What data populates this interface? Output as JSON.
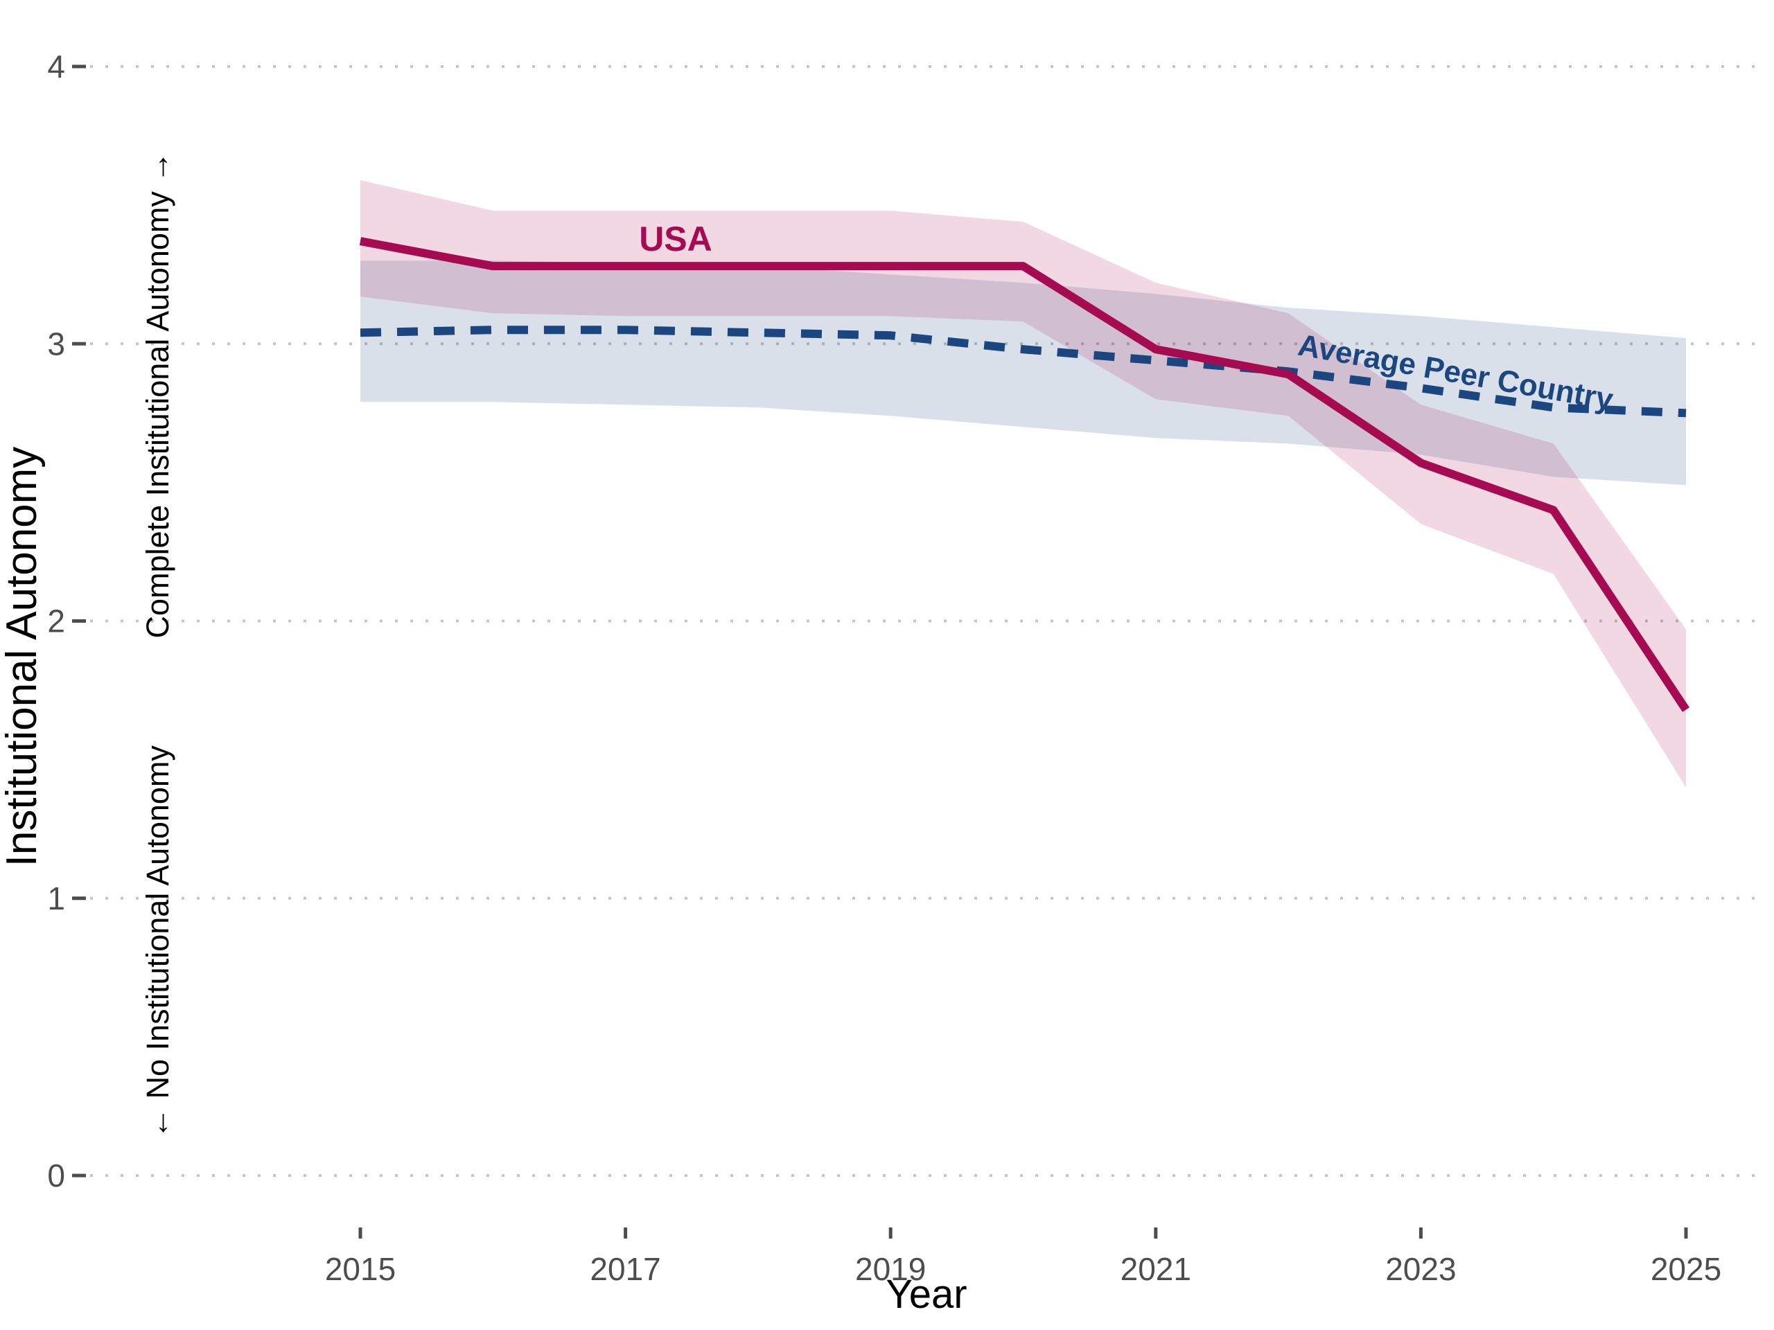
{
  "page": {
    "background": "#FFFFFF"
  },
  "chart_data": {
    "type": "line",
    "title": "",
    "xlabel": "Year",
    "ylabel": "Institutional Autonomy",
    "x": [
      2015,
      2016,
      2017,
      2018,
      2019,
      2020,
      2021,
      2022,
      2023,
      2024,
      2025
    ],
    "xticks": [
      2015,
      2017,
      2019,
      2021,
      2023,
      2025
    ],
    "yticks": [
      0,
      1,
      2,
      3,
      4
    ],
    "ylim": [
      0,
      4
    ],
    "xlim": [
      2013,
      2025.6
    ],
    "grid": "horizontal-dotted",
    "gridline_color": "#C5C5C5",
    "tick_color": "#4D4D4D",
    "legend": "inline-labels",
    "series": [
      {
        "name": "USA",
        "style": "solid",
        "color": "#A60A50",
        "band_fill": "rgba(166,10,80,0.16)",
        "values": [
          3.37,
          3.28,
          3.28,
          3.28,
          3.28,
          3.28,
          2.98,
          2.89,
          2.57,
          2.4,
          1.68
        ],
        "ci_lower": [
          3.17,
          3.11,
          3.1,
          3.1,
          3.1,
          3.08,
          2.8,
          2.74,
          2.35,
          2.17,
          1.4
        ],
        "ci_upper": [
          3.59,
          3.48,
          3.48,
          3.48,
          3.48,
          3.44,
          3.22,
          3.11,
          2.78,
          2.64,
          1.97
        ]
      },
      {
        "name": "Average Peer Country",
        "style": "dashed",
        "color": "#1B4680",
        "band_fill": "rgba(27,70,128,0.17)",
        "values": [
          3.04,
          3.05,
          3.05,
          3.04,
          3.03,
          2.98,
          2.94,
          2.9,
          2.84,
          2.77,
          2.75
        ],
        "ci_lower": [
          2.79,
          2.79,
          2.78,
          2.77,
          2.74,
          2.7,
          2.66,
          2.64,
          2.6,
          2.52,
          2.49
        ],
        "ci_upper": [
          3.3,
          3.3,
          3.29,
          3.28,
          3.25,
          3.22,
          3.18,
          3.13,
          3.1,
          3.06,
          3.02
        ]
      }
    ],
    "annotations": [
      {
        "id": "usa-label",
        "text": "USA",
        "color": "#A60A50"
      },
      {
        "id": "peer-label",
        "text": "Average Peer Country",
        "color": "#1B4680"
      },
      {
        "id": "top-axis-note",
        "text": "Complete Institutional Autonomy →",
        "color": "#000000"
      },
      {
        "id": "bottom-axis-note",
        "text": "← No Institutional Autonomy",
        "color": "#000000"
      }
    ]
  }
}
